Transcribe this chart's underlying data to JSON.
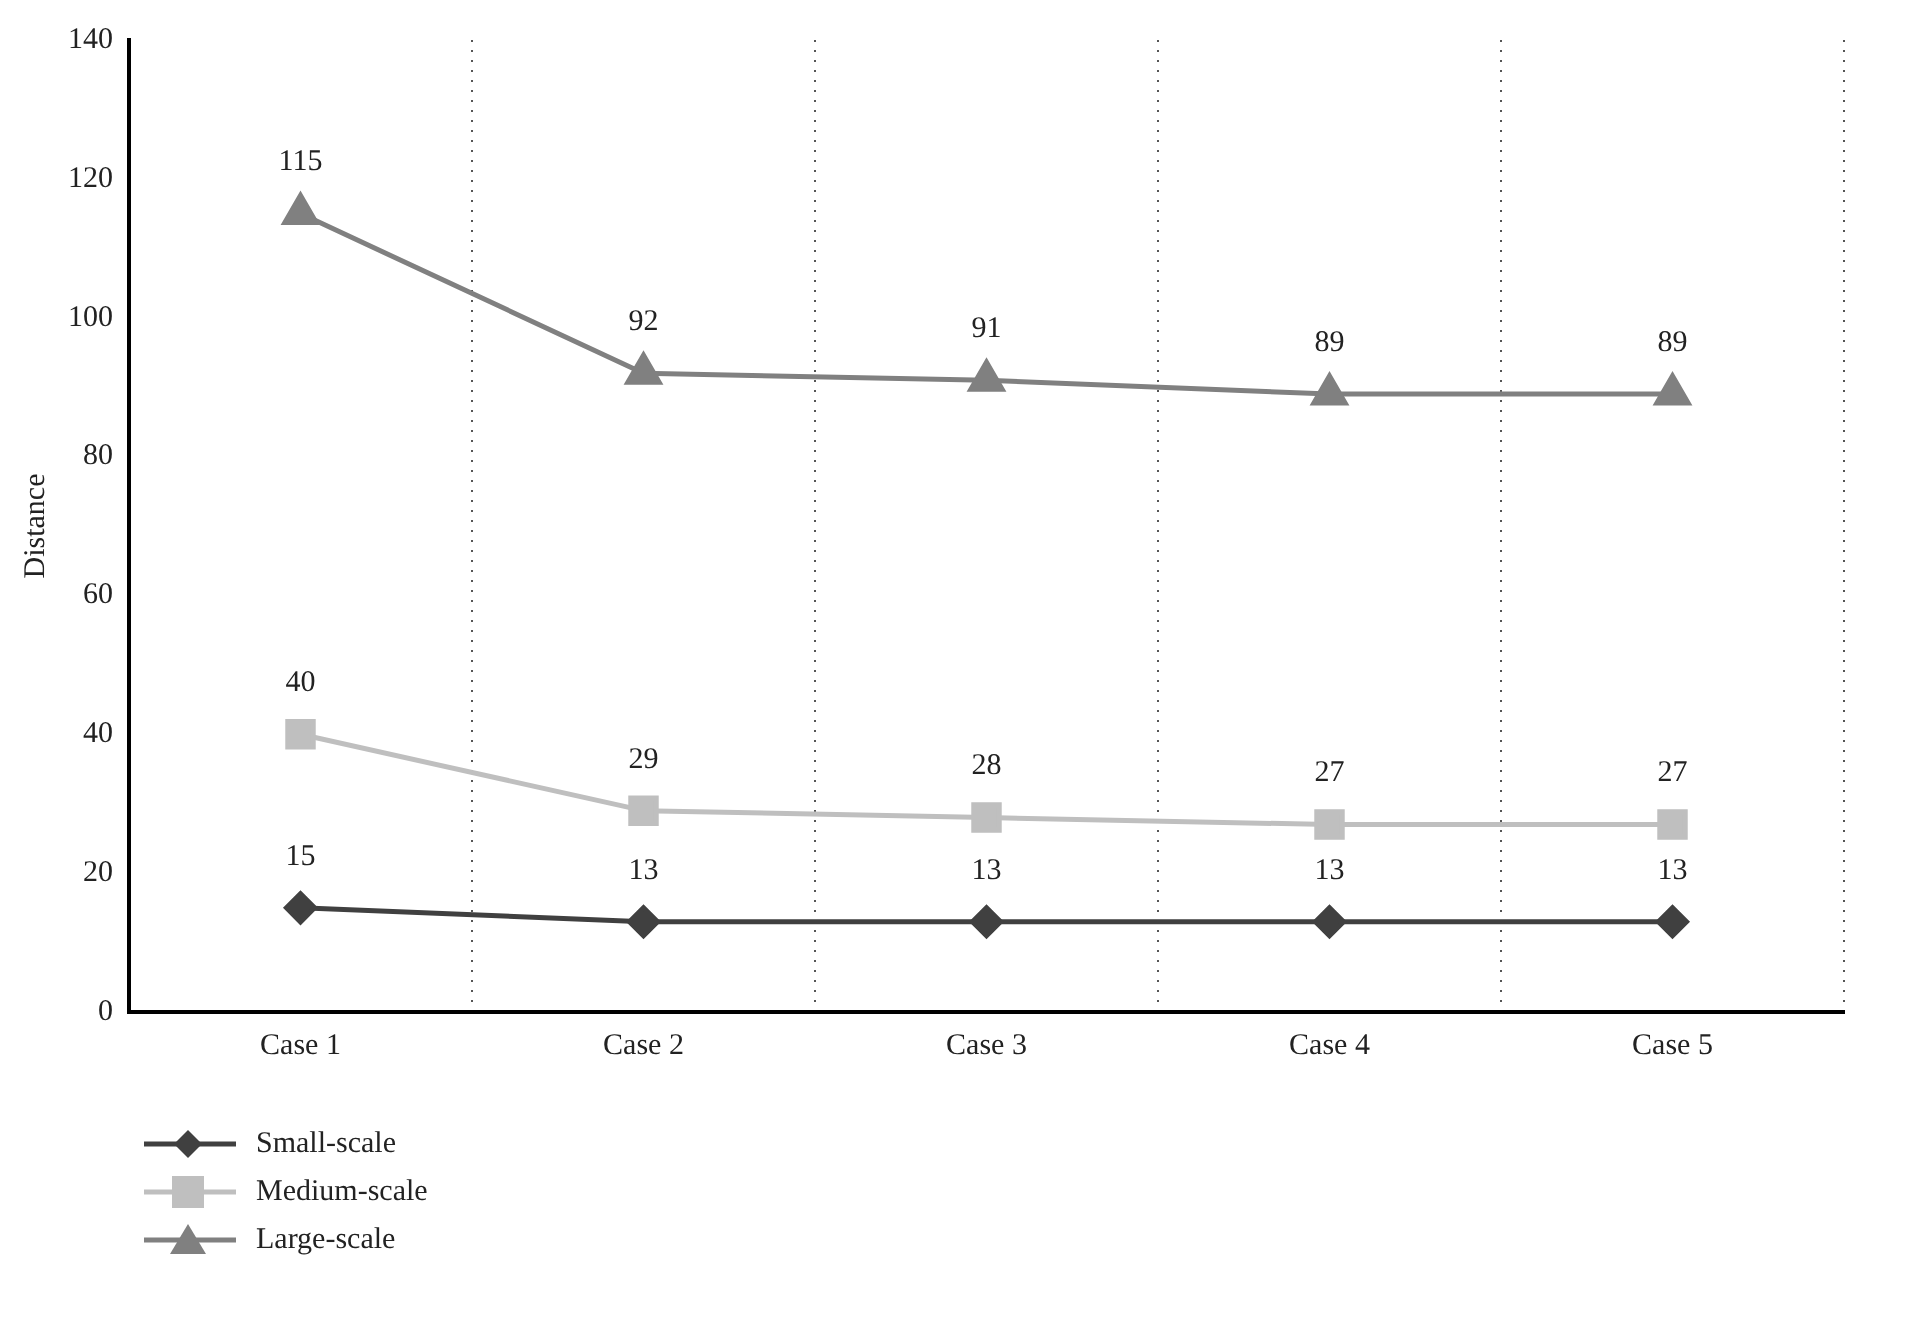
{
  "chart_data": {
    "type": "line",
    "ylabel": "Distance",
    "categories": [
      "Case 1",
      "Case 2",
      "Case 3",
      "Case 4",
      "Case 5"
    ],
    "series": [
      {
        "name": "Small-scale",
        "color": "#404040",
        "marker": "diamond",
        "values": [
          15,
          13,
          13,
          13,
          13
        ]
      },
      {
        "name": "Medium-scale",
        "color": "#bfbfbf",
        "marker": "square",
        "values": [
          40,
          29,
          28,
          27,
          27
        ]
      },
      {
        "name": "Large-scale",
        "color": "#808080",
        "marker": "triangle",
        "values": [
          115,
          92,
          91,
          89,
          89
        ]
      }
    ],
    "ylim": [
      0,
      140
    ],
    "yticks": [
      0,
      20,
      40,
      60,
      80,
      100,
      120,
      140
    ],
    "grid": "x",
    "legend": "bottom left",
    "data_labels": true,
    "line_style": "solid"
  }
}
